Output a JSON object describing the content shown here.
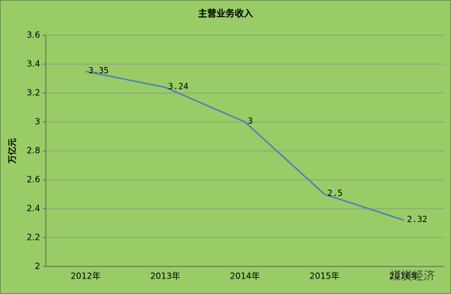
{
  "chart_data": {
    "type": "line",
    "title": "主营业务收入",
    "y_label": "万亿元",
    "categories": [
      "2012年",
      "2013年",
      "2014年",
      "2015年",
      "2016年"
    ],
    "values": [
      3.35,
      3.24,
      3,
      2.5,
      2.32
    ],
    "color": "#4a7ebb",
    "ylim": [
      2,
      3.6
    ],
    "yticks": [
      2,
      2.2,
      2.4,
      2.6,
      2.8,
      3,
      3.2,
      3.4,
      3.6
    ],
    "grid": true,
    "watermark": "煤炭经济"
  }
}
